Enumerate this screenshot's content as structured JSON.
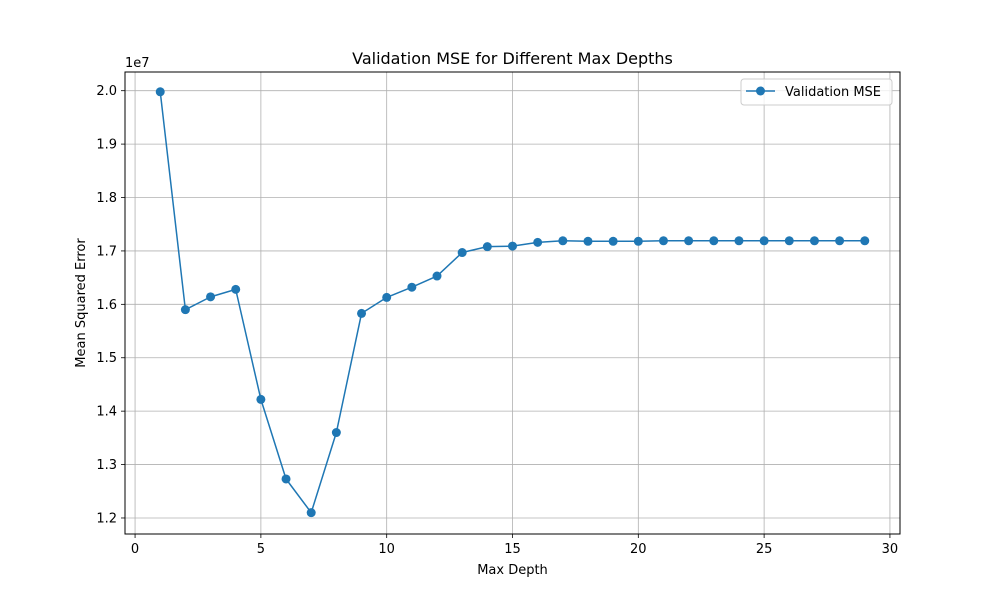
{
  "chart_data": {
    "type": "line",
    "title": "Validation MSE for Different Max Depths",
    "xlabel": "Max Depth",
    "ylabel": "Mean Squared Error",
    "y_offset_label": "1e7",
    "y_scale_factor": 10000000,
    "xlim": [
      -0.4,
      30.4
    ],
    "ylim": [
      11700000,
      20350000
    ],
    "x_ticks": [
      0,
      5,
      10,
      15,
      20,
      25,
      30
    ],
    "y_ticks": [
      1.2,
      1.3,
      1.4,
      1.5,
      1.6,
      1.7,
      1.8,
      1.9,
      2.0
    ],
    "y_tick_labels": [
      "1.2",
      "1.3",
      "1.4",
      "1.5",
      "1.6",
      "1.7",
      "1.8",
      "1.9",
      "2.0"
    ],
    "grid": true,
    "legend_position": "top-right",
    "series": [
      {
        "name": "Validation MSE",
        "color": "#1f77b4",
        "marker": "circle",
        "x": [
          1,
          2,
          3,
          4,
          5,
          6,
          7,
          8,
          9,
          10,
          11,
          12,
          13,
          14,
          15,
          16,
          17,
          18,
          19,
          20,
          21,
          22,
          23,
          24,
          25,
          26,
          27,
          28,
          29
        ],
        "y": [
          19980000,
          15900000,
          16140000,
          16280000,
          14220000,
          12730000,
          12100000,
          13600000,
          15830000,
          16130000,
          16320000,
          16530000,
          16970000,
          17080000,
          17090000,
          17160000,
          17190000,
          17180000,
          17180000,
          17180000,
          17190000,
          17190000,
          17190000,
          17190000,
          17190000,
          17190000,
          17190000,
          17190000,
          17190000
        ]
      }
    ]
  }
}
